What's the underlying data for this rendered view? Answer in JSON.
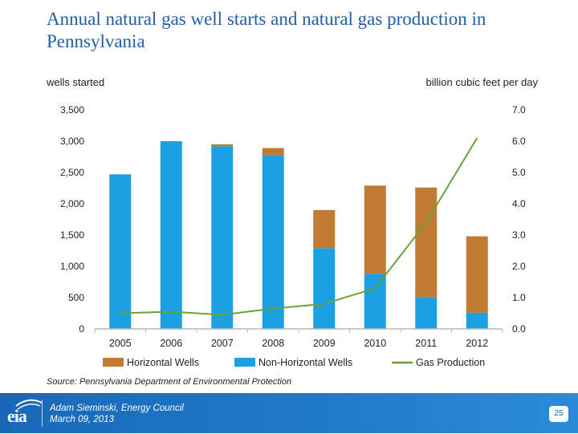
{
  "title": "Annual natural gas well starts and natural gas production in Pennsylvania",
  "source": "Source: Pennsylvania Department of Environmental Protection",
  "footer": {
    "logo_text": "eia",
    "presenter": "Adam Sieminski, Energy Council",
    "date": "March 09, 2013",
    "page_number": "25"
  },
  "colors": {
    "horizontal": "#c07a32",
    "non_horizontal": "#1ba1e2",
    "gas": "#6aa33a",
    "title": "#1f5fa8"
  },
  "chart_data": {
    "type": "bar",
    "stacked": true,
    "left_axis_label": "wells started",
    "right_axis_label": "billion cubic feet per day",
    "categories": [
      "2005",
      "2006",
      "2007",
      "2008",
      "2009",
      "2010",
      "2011",
      "2012"
    ],
    "ylim": [
      0,
      3500
    ],
    "yticks": [
      "0",
      "500",
      "1,000",
      "1,500",
      "2,000",
      "2,500",
      "3,000",
      "3,500"
    ],
    "y2lim": [
      0,
      7
    ],
    "y2ticks": [
      "0.0",
      "1.0",
      "2.0",
      "3.0",
      "4.0",
      "5.0",
      "6.0",
      "7.0"
    ],
    "series": [
      {
        "name": "Non-Horizontal Wells",
        "kind": "bar",
        "values": [
          2470,
          3000,
          2920,
          2780,
          1290,
          880,
          510,
          260
        ]
      },
      {
        "name": "Horizontal Wells",
        "kind": "bar",
        "values": [
          0,
          0,
          30,
          110,
          610,
          1410,
          1750,
          1220
        ]
      },
      {
        "name": "Gas Production",
        "kind": "line",
        "axis": "right",
        "values": [
          0.5,
          0.55,
          0.45,
          0.65,
          0.8,
          1.3,
          3.4,
          6.1
        ]
      }
    ],
    "legend": [
      {
        "name": "Horizontal Wells",
        "symbol": "box"
      },
      {
        "name": "Non-Horizontal Wells",
        "symbol": "box"
      },
      {
        "name": "Gas Production",
        "symbol": "line"
      }
    ]
  }
}
